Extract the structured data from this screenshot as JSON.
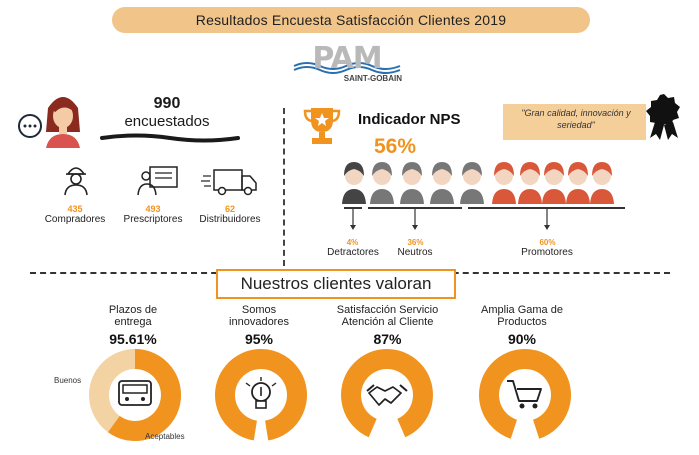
{
  "title": "Resultados Encuesta Satisfacción Clientes 2019",
  "logo": {
    "brand": "PAM",
    "sub": "SAINT-GOBAIN"
  },
  "respondents": {
    "count": "990",
    "label": "encuestados"
  },
  "groups": [
    {
      "value": "435",
      "label": "Compradores",
      "icon": "worker-icon"
    },
    {
      "value": "493",
      "label": "Prescriptores",
      "icon": "presenter-icon"
    },
    {
      "value": "62",
      "label": "Distribuidores",
      "icon": "truck-icon"
    }
  ],
  "nps": {
    "title": "Indicador NPS",
    "value": "56%",
    "quote": "\"Gran calidad, innovación y seriedad\"",
    "segments": [
      {
        "pct": "4%",
        "label": "Detractores"
      },
      {
        "pct": "36%",
        "label": "Neutros"
      },
      {
        "pct": "60%",
        "label": "Promotores"
      }
    ]
  },
  "valoran": {
    "title": "Nuestros clientes valoran"
  },
  "categories": [
    {
      "label_1": "Plazos de",
      "label_2": "entrega",
      "pct": "95.61%",
      "value": 0.9561,
      "icon": "truck-icon"
    },
    {
      "label_1": "Somos",
      "label_2": "innovadores",
      "pct": "95%",
      "value": 0.95,
      "icon": "lightbulb-icon"
    },
    {
      "label_1": "Satisfacción Servicio",
      "label_2": "Atención al Cliente",
      "pct": "87%",
      "value": 0.87,
      "icon": "handshake-icon"
    },
    {
      "label_1": "Amplia Gama de",
      "label_2": "Productos",
      "pct": "90%",
      "value": 0.9,
      "icon": "cart-icon"
    }
  ],
  "donut_legend": {
    "good": "Buenos",
    "acceptable": "Aceptables"
  },
  "colors": {
    "orange": "#f0941f",
    "light_orange": "#f1c489",
    "gray": "#c5c5c5",
    "red_person": "#d9583a",
    "dark_person": "#555555"
  }
}
